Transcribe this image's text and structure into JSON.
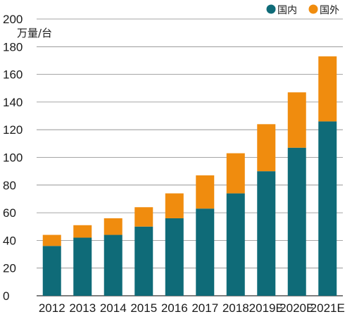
{
  "chart_data": {
    "type": "bar",
    "stacked": true,
    "unit_label": "万量/台",
    "categories": [
      "2012",
      "2013",
      "2014",
      "2015",
      "2016",
      "2017",
      "2018",
      "2019E",
      "2020E",
      "2021E"
    ],
    "series": [
      {
        "name": "国内",
        "color": "#0f6b78",
        "values": [
          36,
          42,
          44,
          50,
          56,
          63,
          74,
          90,
          107,
          126
        ]
      },
      {
        "name": "国外",
        "color": "#f08c0e",
        "values": [
          8,
          9,
          12,
          14,
          18,
          24,
          29,
          34,
          40,
          47
        ]
      }
    ],
    "ylim": [
      0,
      200
    ],
    "yticks": [
      0,
      20,
      40,
      60,
      80,
      100,
      120,
      140,
      160,
      180,
      200
    ],
    "grid": true,
    "legend_position": "top-right"
  }
}
